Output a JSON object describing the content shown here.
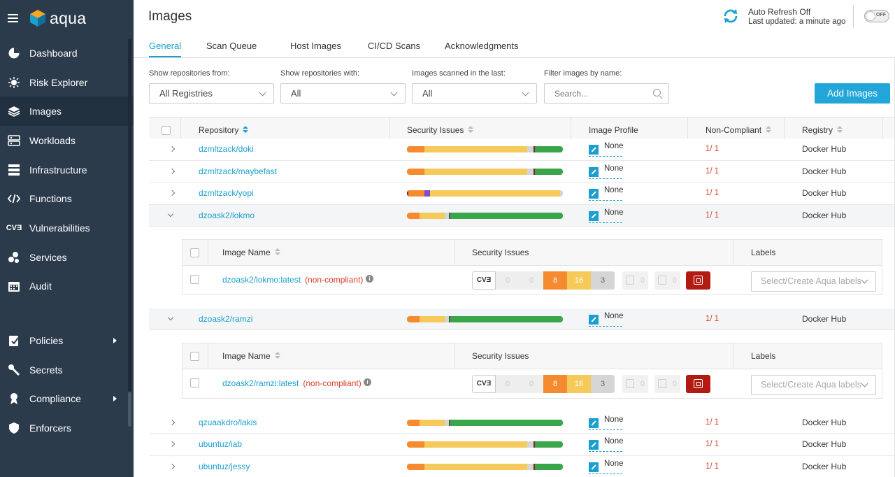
{
  "app": {
    "name": "aqua"
  },
  "sidebar": {
    "items": [
      {
        "label": "Dashboard",
        "icon": "pie-chart-icon"
      },
      {
        "label": "Risk Explorer",
        "icon": "bug-icon"
      },
      {
        "label": "Images",
        "icon": "layers-icon",
        "active": true
      },
      {
        "label": "Workloads",
        "icon": "workloads-icon"
      },
      {
        "label": "Infrastructure",
        "icon": "server-icon"
      },
      {
        "label": "Functions",
        "icon": "code-icon"
      },
      {
        "label": "Vulnerabilities",
        "icon": "cve-icon"
      },
      {
        "label": "Services",
        "icon": "services-icon"
      },
      {
        "label": "Audit",
        "icon": "calendar-icon"
      }
    ],
    "items2": [
      {
        "label": "Policies",
        "icon": "policy-icon",
        "submenu": true
      },
      {
        "label": "Secrets",
        "icon": "key-icon"
      },
      {
        "label": "Compliance",
        "icon": "ribbon-icon",
        "submenu": true
      },
      {
        "label": "Enforcers",
        "icon": "shield-icon"
      }
    ]
  },
  "header": {
    "title": "Images",
    "auto_refresh": "Auto Refresh Off",
    "last_updated": "Last updated: a minute ago",
    "toggle_label": "OFF"
  },
  "tabs": [
    "General",
    "Scan Queue",
    "Host Images",
    "CI/CD Scans",
    "Acknowledgments"
  ],
  "filters": {
    "from_label": "Show repositories from:",
    "from_value": "All Registries",
    "with_label": "Show repositories with:",
    "with_value": "All",
    "scanned_label": "Images scanned in the last:",
    "scanned_value": "All",
    "name_label": "Filter images by name:",
    "name_placeholder": "Search..."
  },
  "add_button": "Add Images",
  "table": {
    "columns": [
      "Repository",
      "Security Issues",
      "Image Profile",
      "Non-Compliant",
      "Registry"
    ],
    "rows": [
      {
        "repo": "dzmltzack/doki",
        "profile": "None",
        "noncompliant": "1/ 1",
        "registry": "Docker Hub",
        "bar": [
          {
            "c": "#f58a2e",
            "w": 11
          },
          {
            "c": "#f5c95a",
            "w": 66
          },
          {
            "c": "#d5d5d5",
            "w": 4
          },
          {
            "c": "#8b1a2b",
            "w": 1
          },
          {
            "c": "#3aa64a",
            "w": 18
          }
        ]
      },
      {
        "repo": "dzmltzack/maybefast",
        "profile": "None",
        "noncompliant": "1/ 1",
        "registry": "Docker Hub",
        "bar": [
          {
            "c": "#f58a2e",
            "w": 11
          },
          {
            "c": "#f5c95a",
            "w": 66
          },
          {
            "c": "#d5d5d5",
            "w": 4
          },
          {
            "c": "#8b1a2b",
            "w": 1
          },
          {
            "c": "#3aa64a",
            "w": 18
          }
        ]
      },
      {
        "repo": "dzmltzack/yopi",
        "profile": "None",
        "noncompliant": "1/ 1",
        "registry": "Docker Hub",
        "bar": [
          {
            "c": "#8b1a2b",
            "w": 1
          },
          {
            "c": "#f58a2e",
            "w": 10
          },
          {
            "c": "#7b4fc9",
            "w": 4
          },
          {
            "c": "#f5c95a",
            "w": 83
          },
          {
            "c": "#d5d5d5",
            "w": 2
          }
        ]
      },
      {
        "repo": "dzoask2/lokmo",
        "profile": "None",
        "noncompliant": "1/ 1",
        "registry": "Docker Hub",
        "expanded": true,
        "bar": [
          {
            "c": "#f58a2e",
            "w": 8
          },
          {
            "c": "#f5c95a",
            "w": 16
          },
          {
            "c": "#d5d5d5",
            "w": 3
          },
          {
            "c": "#555",
            "w": 1
          },
          {
            "c": "#3aa64a",
            "w": 72
          }
        ]
      },
      {
        "repo": "dzoask2/ramzi",
        "profile": "None",
        "noncompliant": "1/ 1",
        "registry": "Docker Hub",
        "expanded": true,
        "bar": [
          {
            "c": "#f58a2e",
            "w": 8
          },
          {
            "c": "#f5c95a",
            "w": 16
          },
          {
            "c": "#d5d5d5",
            "w": 3
          },
          {
            "c": "#555",
            "w": 1
          },
          {
            "c": "#3aa64a",
            "w": 72
          }
        ]
      },
      {
        "repo": "qzuaakdro/lakis",
        "profile": "None",
        "noncompliant": "1/ 1",
        "registry": "Docker Hub",
        "bar": [
          {
            "c": "#f58a2e",
            "w": 8
          },
          {
            "c": "#f5c95a",
            "w": 16
          },
          {
            "c": "#d5d5d5",
            "w": 3
          },
          {
            "c": "#555",
            "w": 1
          },
          {
            "c": "#3aa64a",
            "w": 72
          }
        ]
      },
      {
        "repo": "ubuntuz/iab",
        "profile": "None",
        "noncompliant": "1/ 1",
        "registry": "Docker Hub",
        "bar": [
          {
            "c": "#f58a2e",
            "w": 11
          },
          {
            "c": "#f5c95a",
            "w": 66
          },
          {
            "c": "#d5d5d5",
            "w": 4
          },
          {
            "c": "#8b1a2b",
            "w": 1
          },
          {
            "c": "#3aa64a",
            "w": 18
          }
        ]
      },
      {
        "repo": "ubuntuz/jessy",
        "profile": "None",
        "noncompliant": "1/ 1",
        "registry": "Docker Hub",
        "bar": [
          {
            "c": "#f58a2e",
            "w": 11
          },
          {
            "c": "#f5c95a",
            "w": 66
          },
          {
            "c": "#d5d5d5",
            "w": 4
          },
          {
            "c": "#8b1a2b",
            "w": 1
          },
          {
            "c": "#3aa64a",
            "w": 18
          }
        ]
      }
    ]
  },
  "nested": {
    "columns": [
      "Image Name",
      "Security Issues",
      "Labels"
    ],
    "cve_label": "CVƎ",
    "label_placeholder": "Select/Create Aqua labels",
    "info_glyph": "i",
    "images": [
      {
        "name": "dzoask2/lokmo:latest",
        "status": "(non-compliant)",
        "critical": "0",
        "high_prev": "0",
        "high": "8",
        "medium": "16",
        "low": "3",
        "malware": "0",
        "sensitive": "0"
      },
      {
        "name": "dzoask2/ramzi:latest",
        "status": "(non-compliant)",
        "critical": "0",
        "high_prev": "0",
        "high": "8",
        "medium": "16",
        "low": "3",
        "malware": "0",
        "sensitive": "0"
      }
    ]
  }
}
